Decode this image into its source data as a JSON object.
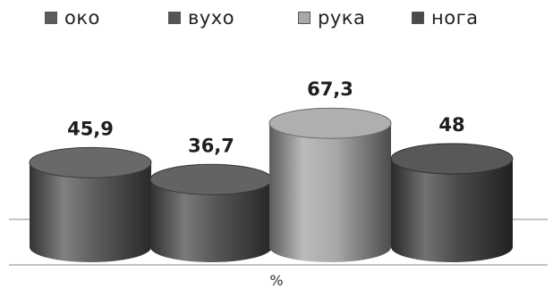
{
  "chart_data": {
    "type": "bar",
    "style": "3d-cylinder",
    "categories": [
      "око",
      "вухо",
      "рука",
      "нога"
    ],
    "values": [
      45.9,
      36.7,
      67.3,
      48
    ],
    "value_labels": [
      "45,9",
      "36,7",
      "67,3",
      "48"
    ],
    "xlabel": "%",
    "ylim": [
      0,
      80
    ],
    "grid": false,
    "legend": "top",
    "colors": [
      "#5c5c5c",
      "#555555",
      "#a8a8a8",
      "#4a4a4a"
    ]
  }
}
